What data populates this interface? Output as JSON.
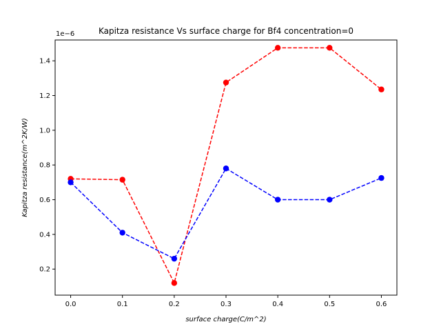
{
  "chart_data": {
    "type": "line",
    "title": "Kapitza resistance Vs surface charge for Bf4 concentration=0",
    "xlabel": "surface charge(C/m^2)",
    "ylabel": "Kapitza resistance(m^2K/W)",
    "offset_label": "1e−6",
    "x": [
      0.0,
      0.1,
      0.2,
      0.3,
      0.4,
      0.5,
      0.6
    ],
    "xlim": [
      -0.03,
      0.63
    ],
    "ylim": [
      0.05,
      1.52
    ],
    "xticks": [
      0.0,
      0.1,
      0.2,
      0.3,
      0.4,
      0.5,
      0.6
    ],
    "xtick_labels": [
      "0.0",
      "0.1",
      "0.2",
      "0.3",
      "0.4",
      "0.5",
      "0.6"
    ],
    "yticks": [
      0.2,
      0.4,
      0.6,
      0.8,
      1.0,
      1.2,
      1.4
    ],
    "ytick_labels": [
      "0.2",
      "0.4",
      "0.6",
      "0.8",
      "1.0",
      "1.2",
      "1.4"
    ],
    "grid": false,
    "series": [
      {
        "color": "#ff0000",
        "line_style": "dashed",
        "marker": "circle",
        "values": [
          0.72,
          0.715,
          0.12,
          1.275,
          1.475,
          1.475,
          1.235
        ]
      },
      {
        "color": "#0000ff",
        "line_style": "dashed",
        "marker": "circle",
        "values": [
          0.7,
          0.41,
          0.26,
          0.78,
          0.6,
          0.6,
          0.725
        ]
      }
    ]
  }
}
